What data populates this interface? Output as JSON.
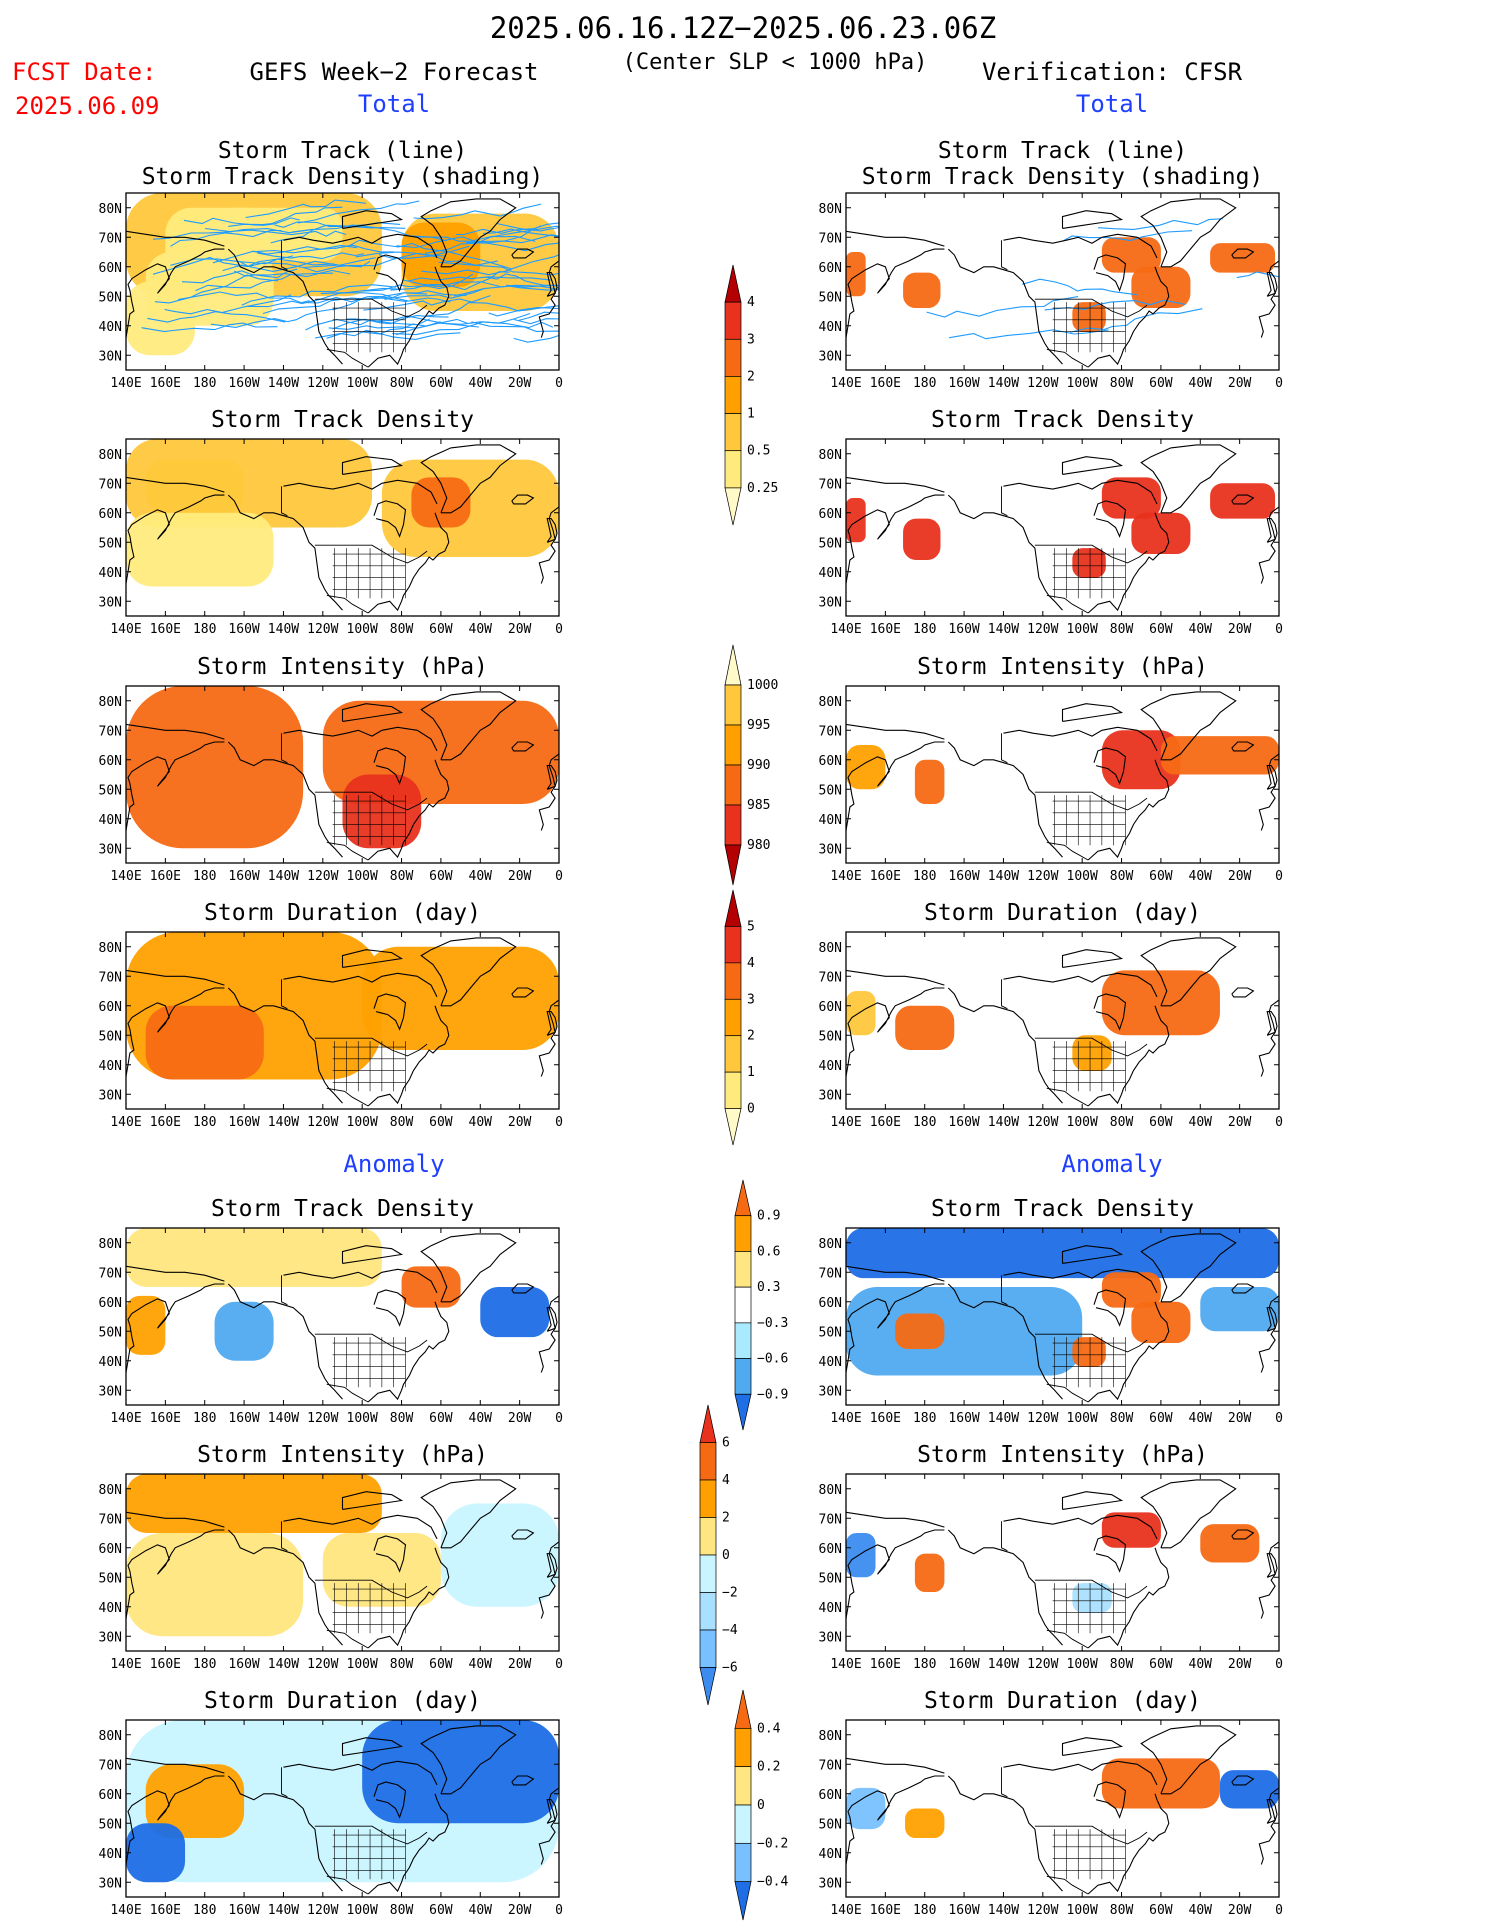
{
  "header": {
    "date_range": "2025.06.16.12Z−2025.06.23.06Z",
    "fcst_label": "FCST Date:",
    "fcst_date": "2025.06.09",
    "left_model": "GEFS Week−2 Forecast",
    "center_note": "(Center SLP < 1000 hPa)",
    "right_model": "Verification: CFSR",
    "total_label": "Total",
    "anomaly_label": "Anomaly"
  },
  "colors": {
    "title_red": "#ff0000",
    "section_blue": "#1f3fff",
    "track_line": "#1e9bff",
    "frame": "#000000"
  },
  "axes": {
    "lon_ticks": [
      "140E",
      "160E",
      "180",
      "160W",
      "140W",
      "120W",
      "100W",
      "80W",
      "60W",
      "40W",
      "20W",
      "0"
    ],
    "lat_ticks": [
      "80N",
      "70N",
      "60N",
      "50N",
      "40N",
      "30N"
    ]
  },
  "colorbars": {
    "density_total": {
      "labels": [
        "4",
        "3",
        "2",
        "1",
        "0.5",
        "0.25"
      ],
      "colors": [
        "#b40000",
        "#e8321e",
        "#f76a14",
        "#ffa000",
        "#ffc83c",
        "#ffeb7d",
        "#fffac8"
      ]
    },
    "intensity_total": {
      "labels": [
        "1000",
        "995",
        "990",
        "985",
        "980"
      ],
      "colors": [
        "#fffac8",
        "#ffc83c",
        "#ffa000",
        "#f76a14",
        "#e8321e",
        "#b40000"
      ]
    },
    "duration_total": {
      "labels": [
        "5",
        "4",
        "3",
        "2",
        "1",
        "0"
      ],
      "colors": [
        "#b40000",
        "#e8321e",
        "#f76a14",
        "#ffa000",
        "#ffc83c",
        "#ffeb7d",
        "#fffac8"
      ]
    },
    "density_anom": {
      "labels": [
        "0.9",
        "0.6",
        "0.3",
        "−0.3",
        "−0.6",
        "−0.9"
      ],
      "colors": [
        "#f76a14",
        "#ffa000",
        "#ffe680",
        "#ffffff",
        "#aaeaff",
        "#50aaf0",
        "#1e6ee6"
      ]
    },
    "intensity_anom": {
      "labels": [
        "6",
        "4",
        "2",
        "0",
        "−2",
        "−4",
        "−6"
      ],
      "colors": [
        "#e8321e",
        "#f76a14",
        "#ffa000",
        "#ffe680",
        "#c8f5ff",
        "#aae0ff",
        "#78c0ff",
        "#3c8cf0"
      ]
    },
    "duration_anom": {
      "labels": [
        "0.4",
        "0.2",
        "0",
        "−0.2",
        "−0.4"
      ],
      "colors": [
        "#f76a14",
        "#ffa000",
        "#ffe680",
        "#c8f5ff",
        "#78c0ff",
        "#1e6ee6"
      ]
    }
  },
  "chart_data": [
    {
      "id": "gefs-track",
      "type": "heatmap",
      "title_lines": [
        "Storm Track (line)",
        "Storm Track Density (shading)"
      ],
      "map": {
        "lon_range": [
          140,
          360
        ],
        "lat_range": [
          25,
          85
        ]
      },
      "fields": [
        {
          "lon": [
            140,
            270
          ],
          "lat": [
            50,
            85
          ],
          "level": 2
        },
        {
          "lon": [
            280,
            360
          ],
          "lat": [
            45,
            78
          ],
          "level": 2
        },
        {
          "lon": [
            150,
            215
          ],
          "lat": [
            40,
            65
          ],
          "level": 1
        },
        {
          "lon": [
            160,
            215
          ],
          "lat": [
            55,
            80
          ],
          "level": 1
        },
        {
          "lon": [
            140,
            175
          ],
          "lat": [
            30,
            55
          ],
          "level": 1
        },
        {
          "lon": [
            280,
            320
          ],
          "lat": [
            53,
            75
          ],
          "level": 3
        },
        {
          "lon": [
            185,
            250
          ],
          "lat": [
            62,
            80
          ],
          "level": 1
        }
      ],
      "tracks": {
        "color": "#1e9bff",
        "count": 70
      }
    },
    {
      "id": "cfsr-track",
      "type": "heatmap",
      "title_lines": [
        "Storm Track (line)",
        "Storm Track Density (shading)"
      ],
      "map": {
        "lon_range": [
          140,
          360
        ],
        "lat_range": [
          25,
          85
        ]
      },
      "fields": [
        {
          "lon": [
            140,
            150
          ],
          "lat": [
            50,
            65
          ],
          "level": 4
        },
        {
          "lon": [
            169,
            188
          ],
          "lat": [
            46,
            58
          ],
          "level": 4
        },
        {
          "lon": [
            255,
            272
          ],
          "lat": [
            38,
            48
          ],
          "level": 4
        },
        {
          "lon": [
            270,
            300
          ],
          "lat": [
            58,
            70
          ],
          "level": 4
        },
        {
          "lon": [
            285,
            315
          ],
          "lat": [
            46,
            60
          ],
          "level": 4
        },
        {
          "lon": [
            325,
            358
          ],
          "lat": [
            58,
            68
          ],
          "level": 4
        }
      ],
      "tracks": {
        "color": "#1e9bff",
        "count": 8
      }
    },
    {
      "id": "gefs-density",
      "type": "heatmap",
      "title_lines": [
        "Storm Track Density"
      ],
      "map": {
        "lon_range": [
          140,
          360
        ],
        "lat_range": [
          25,
          85
        ]
      },
      "fields": [
        {
          "lon": [
            140,
            265
          ],
          "lat": [
            55,
            85
          ],
          "level": 2
        },
        {
          "lon": [
            270,
            360
          ],
          "lat": [
            45,
            78
          ],
          "level": 2
        },
        {
          "lon": [
            140,
            215
          ],
          "lat": [
            35,
            60
          ],
          "level": 1
        },
        {
          "lon": [
            285,
            315
          ],
          "lat": [
            55,
            72
          ],
          "level": 4
        },
        {
          "lon": [
            150,
            200
          ],
          "lat": [
            60,
            78
          ],
          "level": 2
        }
      ]
    },
    {
      "id": "cfsr-density",
      "type": "heatmap",
      "title_lines": [
        "Storm Track Density"
      ],
      "map": {
        "lon_range": [
          140,
          360
        ],
        "lat_range": [
          25,
          85
        ]
      },
      "fields": [
        {
          "lon": [
            140,
            150
          ],
          "lat": [
            50,
            65
          ],
          "level": 5
        },
        {
          "lon": [
            169,
            188
          ],
          "lat": [
            44,
            58
          ],
          "level": 5
        },
        {
          "lon": [
            255,
            272
          ],
          "lat": [
            38,
            48
          ],
          "level": 5
        },
        {
          "lon": [
            270,
            300
          ],
          "lat": [
            58,
            72
          ],
          "level": 5
        },
        {
          "lon": [
            285,
            315
          ],
          "lat": [
            46,
            60
          ],
          "level": 5
        },
        {
          "lon": [
            325,
            358
          ],
          "lat": [
            58,
            70
          ],
          "level": 5
        }
      ]
    },
    {
      "id": "gefs-intensity",
      "type": "heatmap",
      "title_lines": [
        "Storm Intensity (hPa)"
      ],
      "map": {
        "lon_range": [
          140,
          360
        ],
        "lat_range": [
          25,
          85
        ]
      },
      "fields": [
        {
          "lon": [
            140,
            230
          ],
          "lat": [
            30,
            85
          ],
          "level": 2
        },
        {
          "lon": [
            240,
            360
          ],
          "lat": [
            45,
            80
          ],
          "level": 2
        },
        {
          "lon": [
            250,
            290
          ],
          "lat": [
            30,
            55
          ],
          "level": 1
        }
      ]
    },
    {
      "id": "cfsr-intensity",
      "type": "heatmap",
      "title_lines": [
        "Storm Intensity (hPa)"
      ],
      "map": {
        "lon_range": [
          140,
          360
        ],
        "lat_range": [
          25,
          85
        ]
      },
      "fields": [
        {
          "lon": [
            140,
            160
          ],
          "lat": [
            50,
            65
          ],
          "level": 3
        },
        {
          "lon": [
            175,
            190
          ],
          "lat": [
            45,
            60
          ],
          "level": 2
        },
        {
          "lon": [
            270,
            310
          ],
          "lat": [
            50,
            70
          ],
          "level": 1
        },
        {
          "lon": [
            300,
            360
          ],
          "lat": [
            55,
            68
          ],
          "level": 2
        }
      ]
    },
    {
      "id": "gefs-duration",
      "type": "heatmap",
      "title_lines": [
        "Storm Duration (day)"
      ],
      "map": {
        "lon_range": [
          140,
          360
        ],
        "lat_range": [
          25,
          85
        ]
      },
      "fields": [
        {
          "lon": [
            140,
            270
          ],
          "lat": [
            35,
            85
          ],
          "level": 3
        },
        {
          "lon": [
            260,
            360
          ],
          "lat": [
            45,
            80
          ],
          "level": 3
        },
        {
          "lon": [
            150,
            210
          ],
          "lat": [
            35,
            60
          ],
          "level": 4
        }
      ]
    },
    {
      "id": "cfsr-duration",
      "type": "heatmap",
      "title_lines": [
        "Storm Duration (day)"
      ],
      "map": {
        "lon_range": [
          140,
          360
        ],
        "lat_range": [
          25,
          85
        ]
      },
      "fields": [
        {
          "lon": [
            140,
            155
          ],
          "lat": [
            50,
            65
          ],
          "level": 2
        },
        {
          "lon": [
            165,
            195
          ],
          "lat": [
            45,
            60
          ],
          "level": 4
        },
        {
          "lon": [
            270,
            330
          ],
          "lat": [
            50,
            72
          ],
          "level": 4
        },
        {
          "lon": [
            255,
            275
          ],
          "lat": [
            38,
            50
          ],
          "level": 3
        }
      ]
    },
    {
      "id": "gefs-density-anom",
      "type": "heatmap",
      "title_lines": [
        "Storm Track Density"
      ],
      "map": {
        "lon_range": [
          140,
          360
        ],
        "lat_range": [
          25,
          85
        ]
      },
      "fields": [
        {
          "lon": [
            140,
            270
          ],
          "lat": [
            65,
            85
          ],
          "level": 2
        },
        {
          "lon": [
            140,
            160
          ],
          "lat": [
            42,
            62
          ],
          "level": 1
        },
        {
          "lon": [
            185,
            215
          ],
          "lat": [
            40,
            60
          ],
          "level": 5
        },
        {
          "lon": [
            280,
            310
          ],
          "lat": [
            58,
            72
          ],
          "level": 0
        },
        {
          "lon": [
            320,
            355
          ],
          "lat": [
            48,
            65
          ],
          "level": 6
        }
      ]
    },
    {
      "id": "cfsr-density-anom",
      "type": "heatmap",
      "title_lines": [
        "Storm Track Density"
      ],
      "map": {
        "lon_range": [
          140,
          360
        ],
        "lat_range": [
          25,
          85
        ]
      },
      "fields": [
        {
          "lon": [
            140,
            360
          ],
          "lat": [
            68,
            85
          ],
          "level": 6
        },
        {
          "lon": [
            140,
            260
          ],
          "lat": [
            35,
            65
          ],
          "level": 5
        },
        {
          "lon": [
            165,
            190
          ],
          "lat": [
            44,
            56
          ],
          "level": 0
        },
        {
          "lon": [
            270,
            300
          ],
          "lat": [
            58,
            70
          ],
          "level": 0
        },
        {
          "lon": [
            285,
            315
          ],
          "lat": [
            46,
            60
          ],
          "level": 0
        },
        {
          "lon": [
            255,
            272
          ],
          "lat": [
            38,
            48
          ],
          "level": 0
        },
        {
          "lon": [
            320,
            360
          ],
          "lat": [
            50,
            65
          ],
          "level": 5
        }
      ]
    },
    {
      "id": "gefs-intensity-anom",
      "type": "heatmap",
      "title_lines": [
        "Storm Intensity (hPa)"
      ],
      "map": {
        "lon_range": [
          140,
          360
        ],
        "lat_range": [
          25,
          85
        ]
      },
      "fields": [
        {
          "lon": [
            140,
            270
          ],
          "lat": [
            65,
            85
          ],
          "level": 2
        },
        {
          "lon": [
            140,
            230
          ],
          "lat": [
            30,
            65
          ],
          "level": 3
        },
        {
          "lon": [
            240,
            300
          ],
          "lat": [
            40,
            65
          ],
          "level": 3
        },
        {
          "lon": [
            300,
            360
          ],
          "lat": [
            40,
            75
          ],
          "level": 4
        }
      ]
    },
    {
      "id": "cfsr-intensity-anom",
      "type": "heatmap",
      "title_lines": [
        "Storm Intensity (hPa)"
      ],
      "map": {
        "lon_range": [
          140,
          360
        ],
        "lat_range": [
          25,
          85
        ]
      },
      "fields": [
        {
          "lon": [
            140,
            155
          ],
          "lat": [
            50,
            65
          ],
          "level": 7
        },
        {
          "lon": [
            175,
            190
          ],
          "lat": [
            45,
            58
          ],
          "level": 1
        },
        {
          "lon": [
            270,
            300
          ],
          "lat": [
            60,
            72
          ],
          "level": 0
        },
        {
          "lon": [
            320,
            350
          ],
          "lat": [
            55,
            68
          ],
          "level": 1
        },
        {
          "lon": [
            255,
            275
          ],
          "lat": [
            38,
            48
          ],
          "level": 5
        }
      ]
    },
    {
      "id": "gefs-duration-anom",
      "type": "heatmap",
      "title_lines": [
        "Storm Duration (day)"
      ],
      "map": {
        "lon_range": [
          140,
          360
        ],
        "lat_range": [
          25,
          85
        ]
      },
      "fields": [
        {
          "lon": [
            140,
            360
          ],
          "lat": [
            30,
            85
          ],
          "level": 3
        },
        {
          "lon": [
            150,
            200
          ],
          "lat": [
            45,
            70
          ],
          "level": 1
        },
        {
          "lon": [
            260,
            360
          ],
          "lat": [
            50,
            85
          ],
          "level": 5
        },
        {
          "lon": [
            140,
            170
          ],
          "lat": [
            30,
            50
          ],
          "level": 5
        }
      ]
    },
    {
      "id": "cfsr-duration-anom",
      "type": "heatmap",
      "title_lines": [
        "Storm Duration (day)"
      ],
      "map": {
        "lon_range": [
          140,
          360
        ],
        "lat_range": [
          25,
          85
        ]
      },
      "fields": [
        {
          "lon": [
            270,
            330
          ],
          "lat": [
            55,
            72
          ],
          "level": 0
        },
        {
          "lon": [
            330,
            360
          ],
          "lat": [
            55,
            68
          ],
          "level": 5
        },
        {
          "lon": [
            170,
            190
          ],
          "lat": [
            45,
            55
          ],
          "level": 1
        },
        {
          "lon": [
            140,
            160
          ],
          "lat": [
            48,
            62
          ],
          "level": 4
        }
      ]
    }
  ]
}
